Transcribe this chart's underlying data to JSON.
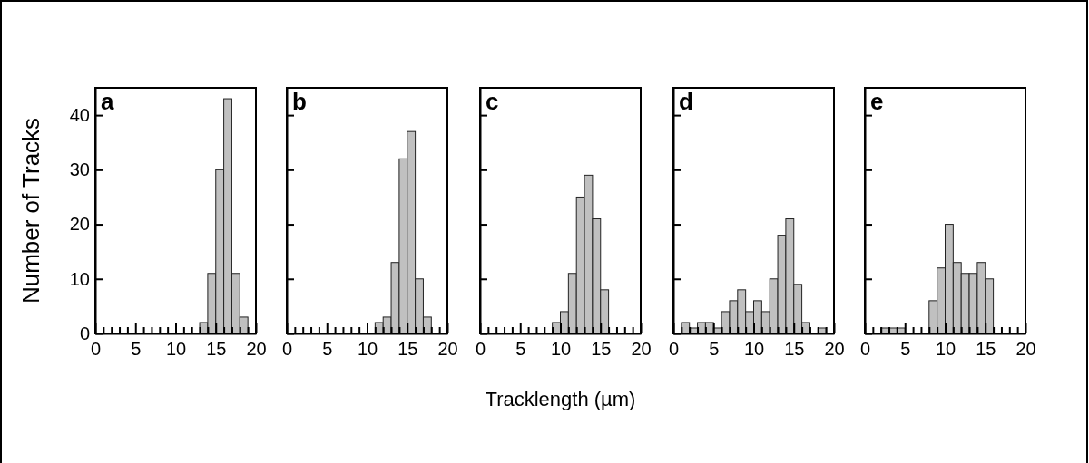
{
  "chart_data": [
    {
      "type": "histogram",
      "title": "a",
      "ylabel": "Number of Tracks",
      "bins": [
        0,
        1,
        2,
        3,
        4,
        5,
        6,
        7,
        8,
        9,
        10,
        11,
        12,
        13,
        14,
        15,
        16,
        17,
        18,
        19,
        20
      ],
      "color": "#c0c0c0",
      "values": [
        0,
        0,
        0,
        0,
        0,
        0,
        0,
        0,
        0,
        0,
        0,
        0,
        0,
        2,
        11,
        30,
        43,
        11,
        3,
        0
      ],
      "xlim": [
        0,
        20
      ],
      "ylim": [
        0,
        45
      ],
      "xticks": [
        0,
        {
          "value": 1,
          "label": null
        },
        {
          "value": 2,
          "label": null
        },
        {
          "value": 3,
          "label": null
        },
        {
          "value": 4,
          "label": null
        },
        5,
        {
          "value": 6,
          "label": null
        },
        {
          "value": 7,
          "label": null
        },
        {
          "value": 8,
          "label": null
        },
        {
          "value": 9,
          "label": null
        },
        10,
        {
          "value": 11,
          "label": null
        },
        {
          "value": 12,
          "label": null
        },
        {
          "value": 13,
          "label": null
        },
        {
          "value": 14,
          "label": null
        },
        15,
        {
          "value": 16,
          "label": null
        },
        {
          "value": 17,
          "label": null
        },
        {
          "value": 18,
          "label": null
        },
        {
          "value": 19,
          "label": null
        },
        20
      ],
      "yticks": [
        0,
        10,
        20,
        30,
        40
      ],
      "grid": false
    },
    {
      "type": "histogram",
      "title": "b",
      "bins": [
        0,
        1,
        2,
        3,
        4,
        5,
        6,
        7,
        8,
        9,
        10,
        11,
        12,
        13,
        14,
        15,
        16,
        17,
        18,
        19,
        20
      ],
      "color": "#c0c0c0",
      "values": [
        0,
        0,
        0,
        0,
        0,
        0,
        0,
        0,
        0,
        0,
        0,
        2,
        3,
        13,
        32,
        37,
        10,
        3,
        0,
        0
      ],
      "xlim": [
        0,
        20
      ],
      "ylim": [
        0,
        45
      ],
      "xticks": [
        0,
        {
          "value": 1,
          "label": null
        },
        {
          "value": 2,
          "label": null
        },
        {
          "value": 3,
          "label": null
        },
        {
          "value": 4,
          "label": null
        },
        5,
        {
          "value": 6,
          "label": null
        },
        {
          "value": 7,
          "label": null
        },
        {
          "value": 8,
          "label": null
        },
        {
          "value": 9,
          "label": null
        },
        10,
        {
          "value": 11,
          "label": null
        },
        {
          "value": 12,
          "label": null
        },
        {
          "value": 13,
          "label": null
        },
        {
          "value": 14,
          "label": null
        },
        15,
        {
          "value": 16,
          "label": null
        },
        {
          "value": 17,
          "label": null
        },
        {
          "value": 18,
          "label": null
        },
        {
          "value": 19,
          "label": null
        },
        20
      ],
      "yticks": [
        0,
        10,
        20,
        30,
        40
      ],
      "tick_labels": "x",
      "grid": false
    },
    {
      "type": "histogram",
      "title": "c",
      "xlabel": "Tracklength (µm)",
      "bins": [
        0,
        1,
        2,
        3,
        4,
        5,
        6,
        7,
        8,
        9,
        10,
        11,
        12,
        13,
        14,
        15,
        16,
        17,
        18,
        19,
        20
      ],
      "color": "#c0c0c0",
      "values": [
        0,
        0,
        0,
        0,
        0,
        0,
        0,
        0,
        0,
        2,
        4,
        11,
        25,
        29,
        21,
        8,
        0,
        0,
        0,
        0
      ],
      "xlim": [
        0,
        20
      ],
      "ylim": [
        0,
        45
      ],
      "xticks": [
        0,
        {
          "value": 1,
          "label": null
        },
        {
          "value": 2,
          "label": null
        },
        {
          "value": 3,
          "label": null
        },
        {
          "value": 4,
          "label": null
        },
        5,
        {
          "value": 6,
          "label": null
        },
        {
          "value": 7,
          "label": null
        },
        {
          "value": 8,
          "label": null
        },
        {
          "value": 9,
          "label": null
        },
        10,
        {
          "value": 11,
          "label": null
        },
        {
          "value": 12,
          "label": null
        },
        {
          "value": 13,
          "label": null
        },
        {
          "value": 14,
          "label": null
        },
        15,
        {
          "value": 16,
          "label": null
        },
        {
          "value": 17,
          "label": null
        },
        {
          "value": 18,
          "label": null
        },
        {
          "value": 19,
          "label": null
        },
        20
      ],
      "yticks": [
        0,
        10,
        20,
        30,
        40
      ],
      "tick_labels": "x",
      "grid": false
    },
    {
      "type": "histogram",
      "title": "d",
      "bins": [
        0,
        1,
        2,
        3,
        4,
        5,
        6,
        7,
        8,
        9,
        10,
        11,
        12,
        13,
        14,
        15,
        16,
        17,
        18,
        19,
        20
      ],
      "color": "#c0c0c0",
      "values": [
        0,
        2,
        1,
        2,
        2,
        1,
        4,
        6,
        8,
        4,
        6,
        4,
        10,
        18,
        21,
        9,
        2,
        0,
        1,
        0
      ],
      "xlim": [
        0,
        20
      ],
      "ylim": [
        0,
        45
      ],
      "xticks": [
        0,
        {
          "value": 1,
          "label": null
        },
        {
          "value": 2,
          "label": null
        },
        {
          "value": 3,
          "label": null
        },
        {
          "value": 4,
          "label": null
        },
        5,
        {
          "value": 6,
          "label": null
        },
        {
          "value": 7,
          "label": null
        },
        {
          "value": 8,
          "label": null
        },
        {
          "value": 9,
          "label": null
        },
        10,
        {
          "value": 11,
          "label": null
        },
        {
          "value": 12,
          "label": null
        },
        {
          "value": 13,
          "label": null
        },
        {
          "value": 14,
          "label": null
        },
        15,
        {
          "value": 16,
          "label": null
        },
        {
          "value": 17,
          "label": null
        },
        {
          "value": 18,
          "label": null
        },
        {
          "value": 19,
          "label": null
        },
        20
      ],
      "yticks": [
        0,
        10,
        20,
        30,
        40
      ],
      "tick_labels": "x",
      "grid": false
    },
    {
      "type": "histogram",
      "title": "e",
      "bins": [
        0,
        1,
        2,
        3,
        4,
        5,
        6,
        7,
        8,
        9,
        10,
        11,
        12,
        13,
        14,
        15,
        16,
        17,
        18,
        19,
        20
      ],
      "color": "#c0c0c0",
      "values": [
        0,
        0,
        1,
        1,
        1,
        0,
        0,
        0,
        6,
        12,
        20,
        13,
        11,
        11,
        13,
        10,
        0,
        0,
        0,
        0
      ],
      "xlim": [
        0,
        20
      ],
      "ylim": [
        0,
        45
      ],
      "xticks": [
        0,
        {
          "value": 1,
          "label": null
        },
        {
          "value": 2,
          "label": null
        },
        {
          "value": 3,
          "label": null
        },
        {
          "value": 4,
          "label": null
        },
        5,
        {
          "value": 6,
          "label": null
        },
        {
          "value": 7,
          "label": null
        },
        {
          "value": 8,
          "label": null
        },
        {
          "value": 9,
          "label": null
        },
        10,
        {
          "value": 11,
          "label": null
        },
        {
          "value": 12,
          "label": null
        },
        {
          "value": 13,
          "label": null
        },
        {
          "value": 14,
          "label": null
        },
        15,
        {
          "value": 16,
          "label": null
        },
        {
          "value": 17,
          "label": null
        },
        {
          "value": 18,
          "label": null
        },
        {
          "value": 19,
          "label": null
        },
        20
      ],
      "yticks": [
        0,
        10,
        20,
        30,
        40
      ],
      "tick_labels": "x",
      "grid": false
    }
  ]
}
